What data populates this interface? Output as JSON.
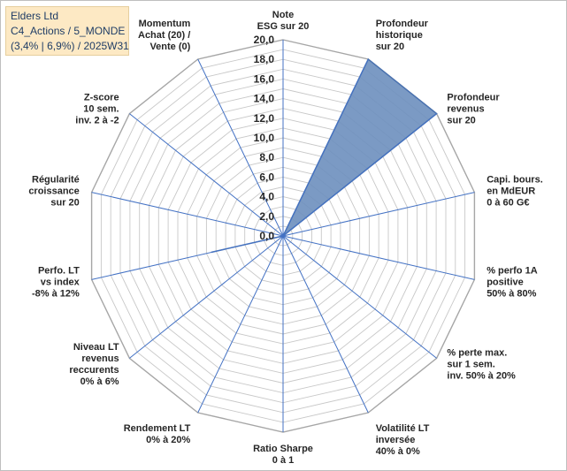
{
  "title_box": {
    "line1": "Elders Ltd",
    "line2": "C4_Actions / 5_MONDE",
    "line3": "(3,4% | 6,9%) / 2025W31"
  },
  "chart_data": {
    "type": "radar",
    "rlim": [
      0,
      20
    ],
    "tick_labels": [
      "0,0",
      "2,0",
      "4,0",
      "6,0",
      "8,0",
      "10,0",
      "12,0",
      "14,0",
      "16,0",
      "18,0",
      "20,0"
    ],
    "axes": [
      {
        "label": [
          "Note",
          "ESG sur 20"
        ],
        "value": 0
      },
      {
        "label": [
          "Profondeur",
          "historique",
          "sur 20"
        ],
        "value": 20
      },
      {
        "label": [
          "Profondeur",
          "revenus",
          "sur 20"
        ],
        "value": 20
      },
      {
        "label": [
          "Capi. bours.",
          "en MdEUR",
          "0 à 60 G€"
        ],
        "value": 0
      },
      {
        "label": [
          "% perfo 1A",
          "positive",
          "50% à 80%"
        ],
        "value": 0
      },
      {
        "label": [
          "% perte max.",
          "sur 1 sem.",
          "inv. 50% à 20%"
        ],
        "value": 0
      },
      {
        "label": [
          "Volatilité LT",
          "inversée",
          "40% à 0%"
        ],
        "value": 0
      },
      {
        "label": [
          "Ratio Sharpe",
          "0 à 1"
        ],
        "value": 0
      },
      {
        "label": [
          "Rendement LT",
          "0% à 20%"
        ],
        "value": 0
      },
      {
        "label": [
          "Niveau LT",
          "revenus",
          "reccurents",
          "0% à 6%"
        ],
        "value": 0
      },
      {
        "label": [
          "Perfo. LT",
          "vs index",
          "-8% à 12%"
        ],
        "value": 7.5
      },
      {
        "label": [
          "Régularité",
          "croissance",
          "sur 20"
        ],
        "value": 0
      },
      {
        "label": [
          "Z-score",
          "10 sem.",
          "inv. 2 à -2"
        ],
        "value": 0
      },
      {
        "label": [
          "Momentum",
          "Achat (20) /",
          "Vente (0)"
        ],
        "value": 0
      }
    ],
    "colors": {
      "fill": "#6d8fbe",
      "stroke": "#4a72b0",
      "spoke": "#4472c4",
      "grid": "#c8c8c8",
      "outer": "#a6a6a6"
    },
    "grid": true,
    "legend": "none"
  }
}
